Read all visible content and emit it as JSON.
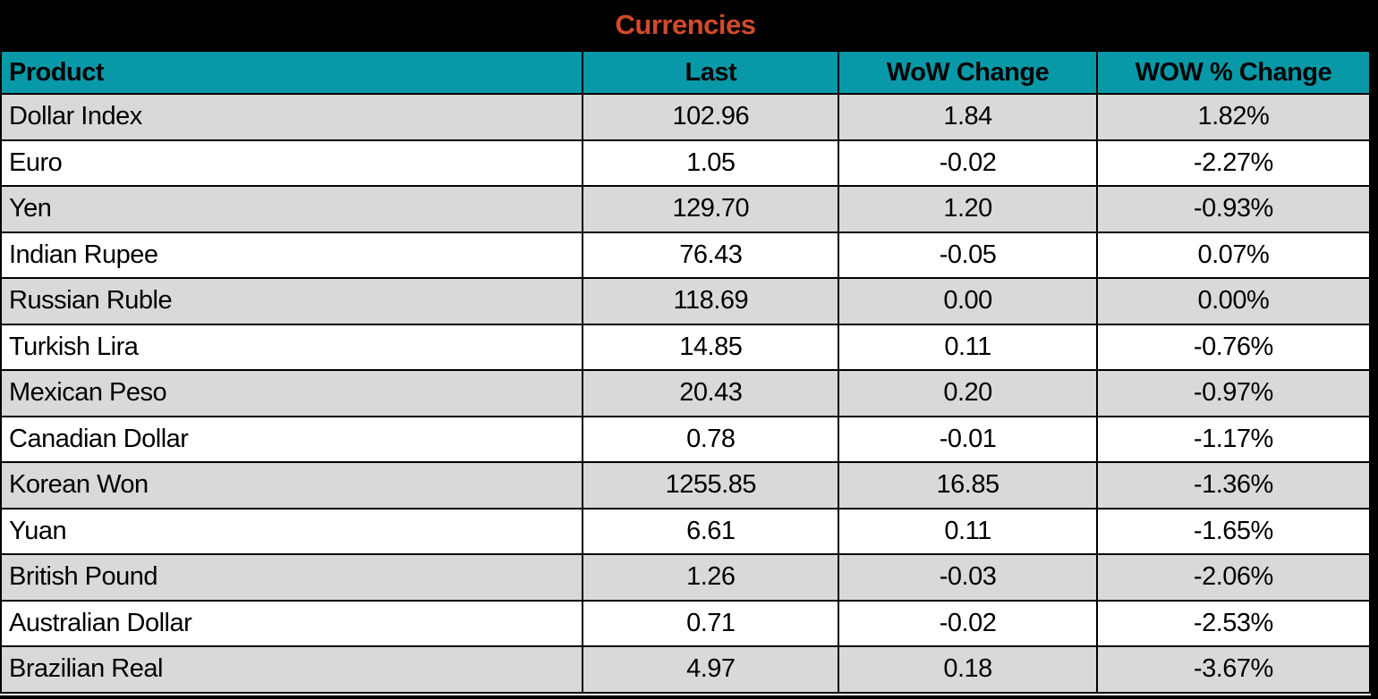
{
  "title_bar": {
    "title": "Currencies"
  },
  "colors": {
    "title_bg": "#000000",
    "title_text": "#D04A2B",
    "header_bg": "#0899A8",
    "header_text": "#000000",
    "row_alt_bg": "#D9D9D9",
    "row_bg": "#FFFFFF",
    "border": "#000000"
  },
  "table": {
    "headers": [
      "Product",
      "Last",
      "WoW Change",
      "WOW % Change"
    ],
    "rows": [
      {
        "product": "Dollar Index",
        "last": "102.96",
        "wow_change": "1.84",
        "wow_pct_change": "1.82%"
      },
      {
        "product": "Euro",
        "last": "1.05",
        "wow_change": "-0.02",
        "wow_pct_change": "-2.27%"
      },
      {
        "product": "Yen",
        "last": "129.70",
        "wow_change": "1.20",
        "wow_pct_change": "-0.93%"
      },
      {
        "product": "Indian Rupee",
        "last": "76.43",
        "wow_change": "-0.05",
        "wow_pct_change": "0.07%"
      },
      {
        "product": "Russian Ruble",
        "last": "118.69",
        "wow_change": "0.00",
        "wow_pct_change": "0.00%"
      },
      {
        "product": "Turkish Lira",
        "last": "14.85",
        "wow_change": "0.11",
        "wow_pct_change": "-0.76%"
      },
      {
        "product": "Mexican Peso",
        "last": "20.43",
        "wow_change": "0.20",
        "wow_pct_change": "-0.97%"
      },
      {
        "product": "Canadian Dollar",
        "last": "0.78",
        "wow_change": "-0.01",
        "wow_pct_change": "-1.17%"
      },
      {
        "product": "Korean Won",
        "last": "1255.85",
        "wow_change": "16.85",
        "wow_pct_change": "-1.36%"
      },
      {
        "product": "Yuan",
        "last": "6.61",
        "wow_change": "0.11",
        "wow_pct_change": "-1.65%"
      },
      {
        "product": "British Pound",
        "last": "1.26",
        "wow_change": "-0.03",
        "wow_pct_change": "-2.06%"
      },
      {
        "product": "Australian Dollar",
        "last": "0.71",
        "wow_change": "-0.02",
        "wow_pct_change": "-2.53%"
      },
      {
        "product": "Brazilian Real",
        "last": "4.97",
        "wow_change": "0.18",
        "wow_pct_change": "-3.67%"
      }
    ]
  },
  "chart_data": {
    "type": "table",
    "title": "Currencies",
    "columns": [
      "Product",
      "Last",
      "WoW Change",
      "WOW % Change"
    ],
    "rows": [
      [
        "Dollar Index",
        102.96,
        1.84,
        "1.82%"
      ],
      [
        "Euro",
        1.05,
        -0.02,
        "-2.27%"
      ],
      [
        "Yen",
        129.7,
        1.2,
        "-0.93%"
      ],
      [
        "Indian Rupee",
        76.43,
        -0.05,
        "0.07%"
      ],
      [
        "Russian Ruble",
        118.69,
        0.0,
        "0.00%"
      ],
      [
        "Turkish Lira",
        14.85,
        0.11,
        "-0.76%"
      ],
      [
        "Mexican Peso",
        20.43,
        0.2,
        "-0.97%"
      ],
      [
        "Canadian Dollar",
        0.78,
        -0.01,
        "-1.17%"
      ],
      [
        "Korean Won",
        1255.85,
        16.85,
        "-1.36%"
      ],
      [
        "Yuan",
        6.61,
        0.11,
        "-1.65%"
      ],
      [
        "British Pound",
        1.26,
        -0.03,
        "-2.06%"
      ],
      [
        "Australian Dollar",
        0.71,
        -0.02,
        "-2.53%"
      ],
      [
        "Brazilian Real",
        4.97,
        0.18,
        "-3.67%"
      ]
    ]
  }
}
